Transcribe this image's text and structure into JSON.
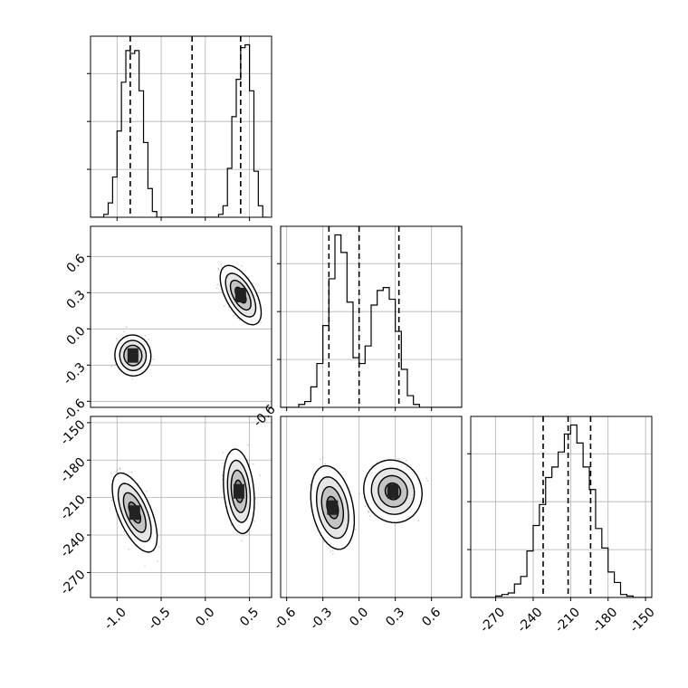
{
  "figure": {
    "kind": "corner-plot"
  },
  "colors": {
    "hist": "#000000",
    "quantile": "#000000",
    "grid": "#b0b0b0",
    "contour": "#000000"
  },
  "chart_data": [
    {
      "type": "histogram",
      "panel": "x",
      "bins": [
        -1.3,
        -1.25,
        -1.2,
        -1.15,
        -1.1,
        -1.05,
        -1.0,
        -0.95,
        -0.9,
        -0.85,
        -0.8,
        -0.75,
        -0.7,
        -0.65,
        -0.6,
        -0.55,
        -0.5,
        -0.45,
        -0.4,
        -0.35,
        -0.3,
        -0.25,
        -0.2,
        -0.15,
        -0.1,
        -0.05,
        0.0,
        0.05,
        0.1,
        0.15,
        0.2,
        0.25,
        0.3,
        0.35,
        0.4,
        0.45,
        0.5,
        0.55,
        0.6,
        0.65,
        0.7
      ],
      "counts": [
        0,
        0,
        0,
        1,
        5,
        14,
        30,
        47,
        58,
        57,
        58,
        44,
        26,
        10,
        2,
        0,
        0,
        0,
        0,
        0,
        0,
        0,
        0,
        0,
        0,
        0,
        0,
        0,
        0,
        1,
        4,
        17,
        35,
        48,
        59,
        60,
        44,
        16,
        4,
        0,
        0
      ],
      "xlim": [
        -1.3,
        0.75
      ],
      "quantiles": [
        -0.85,
        -0.15,
        0.4
      ],
      "xticks": [
        "-1.0",
        "-0.5",
        "0.0",
        "0.5"
      ],
      "xtick_values": [
        -1.0,
        -0.5,
        0.0,
        0.5
      ]
    },
    {
      "type": "scatter-contour",
      "panel": "x-y",
      "xlim": [
        -1.3,
        0.75
      ],
      "ylim": [
        -0.65,
        0.85
      ],
      "clusters": [
        {
          "center": [
            -0.82,
            -0.22
          ],
          "spread": [
            0.12,
            0.1
          ],
          "tilt": 0.1
        },
        {
          "center": [
            0.4,
            0.28
          ],
          "spread": [
            0.1,
            0.16
          ],
          "tilt": 0.5
        }
      ],
      "yticks": [
        "-0.6",
        "-0.3",
        "0.0",
        "0.3",
        "0.6"
      ],
      "ytick_values": [
        -0.6,
        -0.3,
        0.0,
        0.3,
        0.6
      ]
    },
    {
      "type": "scatter-contour",
      "panel": "x-z",
      "xlim": [
        -1.3,
        0.75
      ],
      "ylim": [
        -290,
        -145
      ],
      "clusters": [
        {
          "center": [
            -0.8,
            -222
          ],
          "spread": [
            0.11,
            20
          ],
          "tilt": 0.4
        },
        {
          "center": [
            0.38,
            -205
          ],
          "spread": [
            0.1,
            20
          ],
          "tilt": 0.1
        }
      ],
      "xticks": [
        "-1.0",
        "-0.5",
        "0.0",
        "0.5"
      ],
      "xtick_values": [
        -1.0,
        -0.5,
        0.0,
        0.5
      ],
      "yticks": [
        "-150",
        "-180",
        "-210",
        "-240",
        "-270"
      ],
      "ytick_values": [
        -150,
        -180,
        -210,
        -240,
        -270
      ]
    },
    {
      "type": "histogram",
      "panel": "y",
      "bins": [
        -0.75,
        -0.7,
        -0.65,
        -0.6,
        -0.55,
        -0.5,
        -0.45,
        -0.4,
        -0.35,
        -0.3,
        -0.25,
        -0.2,
        -0.15,
        -0.1,
        -0.05,
        0.0,
        0.05,
        0.1,
        0.15,
        0.2,
        0.25,
        0.3,
        0.35,
        0.4,
        0.45,
        0.5,
        0.55,
        0.6,
        0.65,
        0.7,
        0.75,
        0.8,
        0.85
      ],
      "counts": [
        0,
        0,
        0,
        0,
        0,
        1,
        2,
        7,
        15,
        28,
        44,
        59,
        53,
        36,
        17,
        15,
        21,
        35,
        40,
        41,
        37,
        26,
        13,
        4,
        1,
        0,
        0,
        0,
        0,
        0,
        0,
        0
      ],
      "xlim": [
        -0.65,
        0.85
      ],
      "quantiles": [
        -0.25,
        0.0,
        0.33
      ],
      "xticks": [
        "-0.6",
        "-0.3",
        "0.0",
        "0.3",
        "0.6"
      ],
      "xtick_values": [
        -0.6,
        -0.3,
        0.0,
        0.3,
        0.6
      ]
    },
    {
      "type": "scatter-contour",
      "panel": "y-z",
      "xlim": [
        -0.65,
        0.85
      ],
      "ylim": [
        -290,
        -145
      ],
      "clusters": [
        {
          "center": [
            -0.22,
            -218
          ],
          "spread": [
            0.1,
            20
          ],
          "tilt": 0.2
        },
        {
          "center": [
            0.28,
            -205
          ],
          "spread": [
            0.14,
            15
          ],
          "tilt": 0.4
        }
      ],
      "xticks": [
        "-0.6",
        "-0.3",
        "0.0",
        "0.3",
        "0.6"
      ],
      "xtick_values": [
        -0.6,
        -0.3,
        0.0,
        0.3,
        0.6
      ]
    },
    {
      "type": "histogram",
      "panel": "z",
      "bins": [
        -290,
        -285,
        -280,
        -275,
        -270,
        -265,
        -260,
        -255,
        -250,
        -245,
        -240,
        -235,
        -230,
        -225,
        -220,
        -215,
        -210,
        -205,
        -200,
        -195,
        -190,
        -185,
        -180,
        -175,
        -170,
        -165,
        -160,
        -155,
        -150,
        -145
      ],
      "counts": [
        0,
        0,
        0,
        0,
        1,
        2,
        3,
        9,
        14,
        31,
        48,
        62,
        80,
        87,
        97,
        109,
        115,
        103,
        87,
        72,
        46,
        33,
        17,
        10,
        2,
        1,
        0,
        0,
        0
      ],
      "xlim": [
        -290,
        -145
      ],
      "quantiles": [
        -232,
        -212,
        -194
      ],
      "xticks": [
        "-270",
        "-240",
        "-210",
        "-180",
        "-150"
      ],
      "xtick_values": [
        -270,
        -240,
        -210,
        -180,
        -150
      ]
    }
  ]
}
